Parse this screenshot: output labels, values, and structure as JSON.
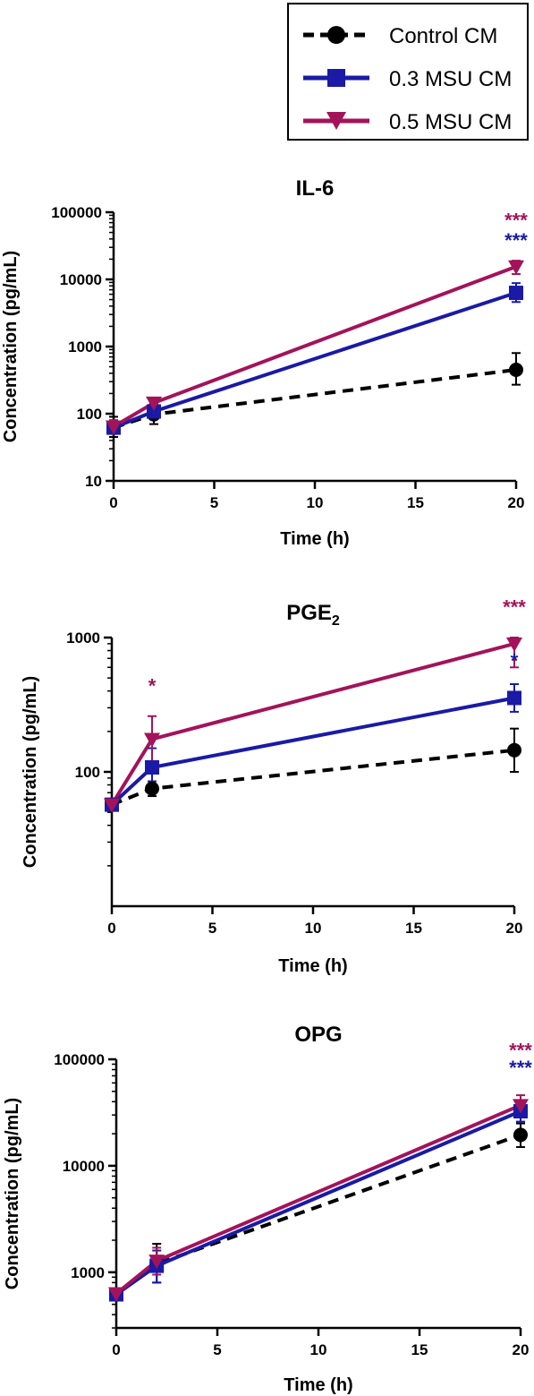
{
  "legend": [
    {
      "label": "Control CM",
      "color": "#000000",
      "marker": "circle",
      "dash": true
    },
    {
      "label": "0.3 MSU CM",
      "color": "#1a1aa6",
      "marker": "square",
      "dash": false
    },
    {
      "label": "0.5 MSU CM",
      "color": "#a3135a",
      "marker": "triangle-down",
      "dash": false
    }
  ],
  "chart_data": [
    {
      "type": "line",
      "title": "IL-6",
      "title_sub": "",
      "xlabel": "Time (h)",
      "ylabel": "Concentration (pg/mL)",
      "yscale": "log",
      "xlim": [
        0,
        20
      ],
      "ylim": [
        10,
        100000
      ],
      "xticks": [
        0,
        5,
        10,
        15,
        20
      ],
      "xtick_labels": [
        "0",
        "5",
        "10",
        "15",
        "20"
      ],
      "yticks": [
        10,
        100,
        1000,
        10000,
        100000
      ],
      "ytick_labels": [
        "10",
        "100",
        "1000",
        "10000",
        "100000"
      ],
      "x": [
        0,
        2,
        20
      ],
      "series": [
        {
          "name": "Control CM",
          "values": [
            62,
            98,
            450
          ],
          "err_hi": [
            90,
            125,
            800
          ],
          "err_lo": [
            45,
            70,
            270
          ]
        },
        {
          "name": "0.3 MSU CM",
          "values": [
            62,
            108,
            6300
          ],
          "err_hi": [
            80,
            140,
            8800
          ],
          "err_lo": [
            50,
            85,
            4600
          ]
        },
        {
          "name": "0.5 MSU CM",
          "values": [
            64,
            145,
            15500
          ],
          "err_hi": [
            80,
            165,
            19000
          ],
          "err_lo": [
            55,
            125,
            12000
          ]
        }
      ],
      "annotations": [
        {
          "text": "***",
          "series": 2,
          "x": 20,
          "y": 60000
        },
        {
          "text": "***",
          "series": 1,
          "x": 20,
          "y": 30000
        }
      ]
    },
    {
      "type": "line",
      "title": "PGE",
      "title_sub": "2",
      "xlabel": "Time (h)",
      "ylabel": "Concentration (pg/mL)",
      "yscale": "log",
      "xlim": [
        0,
        20
      ],
      "ylim": [
        10,
        1000
      ],
      "xticks": [
        0,
        5,
        10,
        15,
        20
      ],
      "xtick_labels": [
        "0",
        "5",
        "10",
        "15",
        "20"
      ],
      "yticks": [
        100,
        1000
      ],
      "ytick_labels": [
        "100",
        "1000"
      ],
      "x": [
        0,
        2,
        20
      ],
      "series": [
        {
          "name": "Control CM",
          "values": [
            57,
            75,
            145
          ],
          "err_hi": [
            62,
            85,
            210
          ],
          "err_lo": [
            52,
            66,
            100
          ]
        },
        {
          "name": "0.3 MSU CM",
          "values": [
            57,
            108,
            355
          ],
          "err_hi": [
            62,
            150,
            450
          ],
          "err_lo": [
            52,
            85,
            280
          ]
        },
        {
          "name": "0.5 MSU CM",
          "values": [
            57,
            175,
            900
          ],
          "err_hi": [
            62,
            260,
            1000
          ],
          "err_lo": [
            52,
            120,
            600
          ]
        }
      ],
      "annotations": [
        {
          "text": "*",
          "series": 2,
          "x": 2,
          "y": 390
        },
        {
          "text": "***",
          "series": 2,
          "x": 20,
          "y": 1500
        },
        {
          "text": "*",
          "series": 1,
          "x": 20,
          "y": 600
        }
      ]
    },
    {
      "type": "line",
      "title": "OPG",
      "title_sub": "",
      "xlabel": "Time (h)",
      "ylabel": "Concentration (pg/mL)",
      "yscale": "log",
      "xlim": [
        0,
        20
      ],
      "ylim": [
        300,
        100000
      ],
      "xticks": [
        0,
        5,
        10,
        15,
        20
      ],
      "xtick_labels": [
        "0",
        "5",
        "10",
        "15",
        "20"
      ],
      "yticks": [
        1000,
        10000,
        100000
      ],
      "ytick_labels": [
        "1000",
        "10000",
        "100000"
      ],
      "x": [
        0,
        2,
        20
      ],
      "series": [
        {
          "name": "Control CM",
          "values": [
            620,
            1200,
            19500
          ],
          "err_hi": [
            700,
            1850,
            25000
          ],
          "err_lo": [
            550,
            800,
            15000
          ]
        },
        {
          "name": "0.3 MSU CM",
          "values": [
            620,
            1150,
            32500
          ],
          "err_hi": [
            700,
            1600,
            40000
          ],
          "err_lo": [
            550,
            800,
            26000
          ]
        },
        {
          "name": "0.5 MSU CM",
          "values": [
            630,
            1280,
            37000
          ],
          "err_hi": [
            700,
            1700,
            46000
          ],
          "err_lo": [
            560,
            950,
            30000
          ]
        }
      ],
      "annotations": [
        {
          "text": "***",
          "series": 2,
          "x": 20,
          "y": 105000
        },
        {
          "text": "***",
          "series": 1,
          "x": 20,
          "y": 72000
        }
      ]
    }
  ]
}
